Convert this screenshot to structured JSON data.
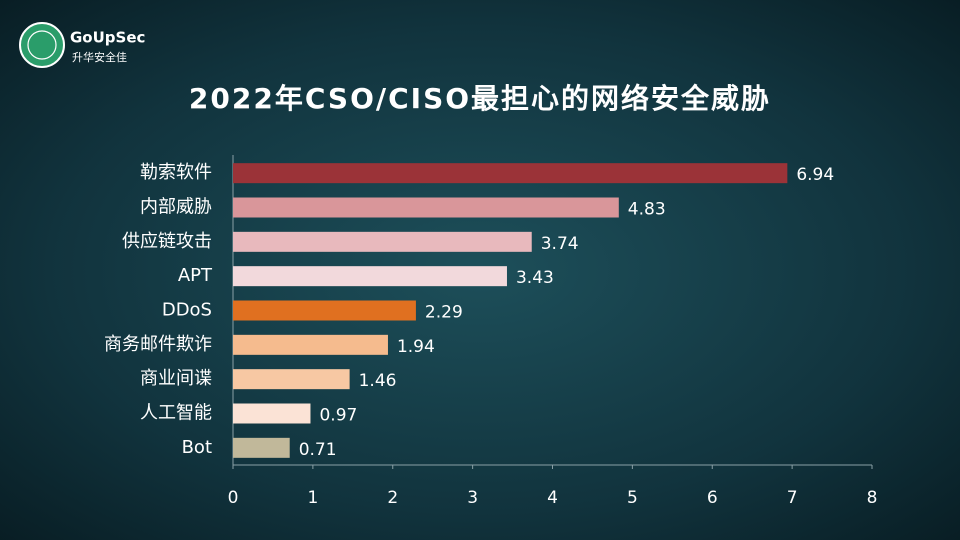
{
  "logo": {
    "name": "GoUpSec",
    "subtitle": "升华安全佳"
  },
  "chart_data": {
    "type": "barh",
    "title": "2022年CSO/CISO最担心的网络安全威胁",
    "categories": [
      "勒索软件",
      "内部威胁",
      "供应链攻击",
      "APT",
      "DDoS",
      "商务邮件欺诈",
      "商业间谍",
      "人工智能",
      "Bot"
    ],
    "values": [
      6.94,
      4.83,
      3.74,
      3.43,
      2.29,
      1.94,
      1.46,
      0.97,
      0.71
    ],
    "colors": [
      "#9b3338",
      "#d9969a",
      "#e8b9bd",
      "#f2d9dc",
      "#e07020",
      "#f5bb8e",
      "#f7c8a3",
      "#fbe3d6",
      "#c1b89a"
    ],
    "xlim": [
      0,
      8
    ],
    "xticks": [
      0,
      1,
      2,
      3,
      4,
      5,
      6,
      7,
      8
    ],
    "grid": false
  }
}
